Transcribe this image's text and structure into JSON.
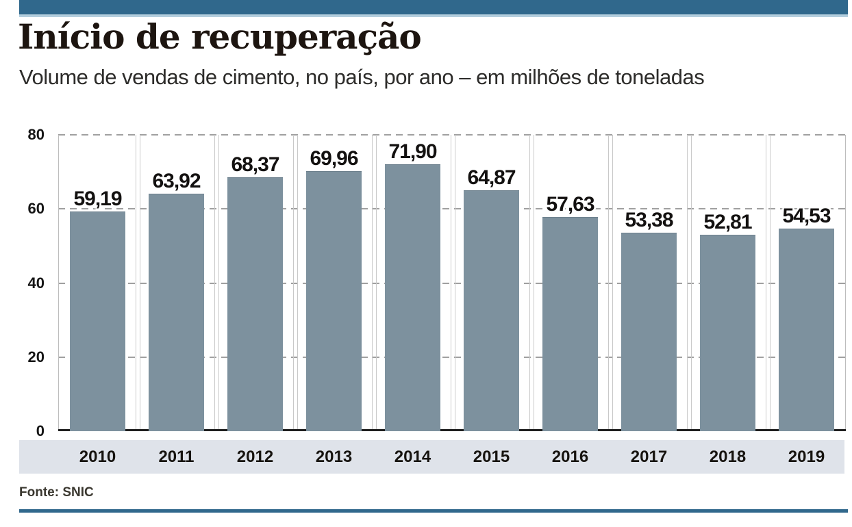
{
  "header": {
    "title": "Início de recuperação",
    "subtitle": "Volume de vendas de cimento, no país, por ano – em milhões de toneladas"
  },
  "source": {
    "label": "Fonte: SNIC"
  },
  "colors": {
    "accent_blue": "#30688c",
    "accent_blue_light": "#b3cedd",
    "bar_fill": "#7d919e",
    "bar_top_edge": "#6d808d",
    "axis_band_bg": "#dfe3ea",
    "grid_line": "#a0a0a0",
    "cell_line": "#c9c9c9",
    "baseline": "#1e1e1e",
    "label_text": "#131110"
  },
  "chart_data": {
    "type": "bar",
    "title": "Início de recuperação",
    "subtitle": "Volume de vendas de cimento, no país, por ano – em milhões de toneladas",
    "categories": [
      "2010",
      "2011",
      "2012",
      "2013",
      "2014",
      "2015",
      "2016",
      "2017",
      "2018",
      "2019"
    ],
    "values": [
      59.19,
      63.92,
      68.37,
      69.96,
      71.9,
      64.87,
      57.63,
      53.38,
      52.81,
      54.53
    ],
    "value_labels": [
      "59,19",
      "63,92",
      "68,37",
      "69,96",
      "71,90",
      "64,87",
      "57,63",
      "53,38",
      "52,81",
      "54,53"
    ],
    "xlabel": "",
    "ylabel": "",
    "unit": "milhões de toneladas",
    "y_ticks": [
      0,
      20,
      40,
      60,
      80
    ],
    "ylim": [
      0,
      80
    ],
    "grid": "dashed horizontal",
    "legend": "none",
    "source": "Fonte: SNIC"
  }
}
